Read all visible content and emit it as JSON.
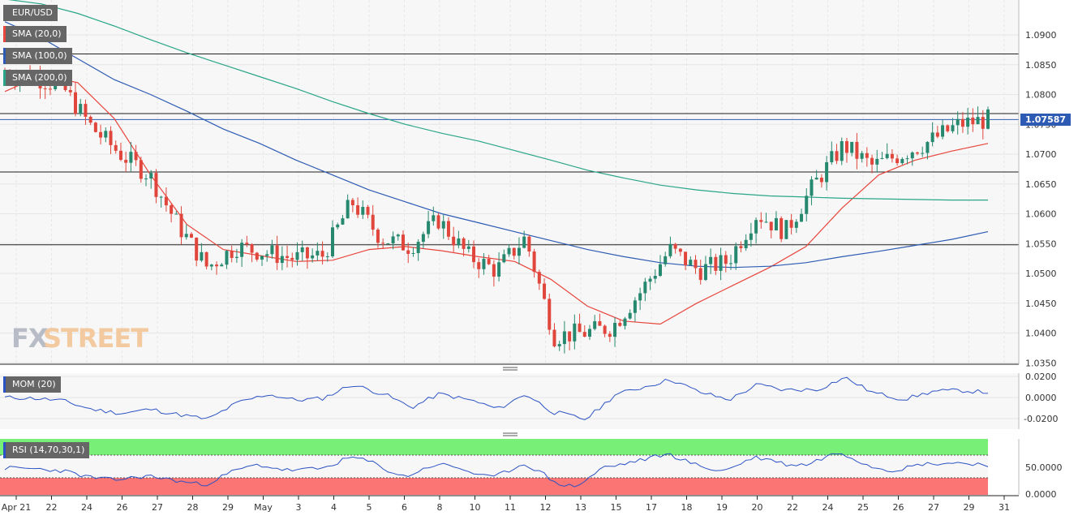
{
  "symbol": "EUR/USD",
  "indicators": [
    "SMA (20,0)",
    "SMA (100,0)",
    "SMA (200,0)"
  ],
  "watermark": {
    "fx": "FX",
    "street": "STREET"
  },
  "momentum": {
    "label": "MOM (20)",
    "ticks": [
      "0.0200",
      "0.0000",
      "-0.0200"
    ]
  },
  "rsi": {
    "label": "RSI (14,70,30,1)",
    "ticks": [
      "50.0000",
      "0.0000"
    ]
  },
  "price_ticks": [
    "1.0900",
    "1.0850",
    "1.0800",
    "1.0750",
    "1.0700",
    "1.0650",
    "1.0600",
    "1.0550",
    "1.0500",
    "1.0450",
    "1.0400",
    "1.0350"
  ],
  "current_price": "1.07587",
  "date_labels": [
    "Apr 21",
    "22",
    "24",
    "26",
    "27",
    "28",
    "29",
    "May",
    "3",
    "4",
    "5",
    "6",
    "8",
    "10",
    "11",
    "12",
    "13",
    "15",
    "17",
    "18",
    "19",
    "20",
    "22",
    "24",
    "25",
    "26",
    "27",
    "29",
    "31"
  ],
  "colors": {
    "up": "#26896f",
    "down": "#e0463c",
    "sma20": "#e8453c",
    "sma100": "#2d5bb3",
    "sma200": "#2aa587",
    "mom": "#2b52c4",
    "rsi": "#2b52c4",
    "rsi_overbought": "#78f078",
    "rsi_oversold": "#fb7575",
    "plot_bg": "#f7f7f7",
    "grid": "#e6e6e6"
  },
  "chart_data": {
    "type": "line",
    "title": "EUR/USD",
    "ylim": [
      1.0345,
      1.096
    ],
    "horizontal_levels": [
      1.0868,
      1.0768,
      1.0758,
      1.067,
      1.0548
    ],
    "x": [
      "Apr 21",
      "22",
      "24",
      "26",
      "27",
      "28",
      "29",
      "May",
      "3",
      "4",
      "5",
      "6",
      "8",
      "10",
      "11",
      "12",
      "13",
      "15",
      "17",
      "18",
      "19",
      "20",
      "22",
      "24",
      "25",
      "26",
      "27",
      "29"
    ],
    "series": [
      {
        "name": "SMA (20,0)",
        "values": [
          1.0805,
          1.0832,
          1.082,
          1.076,
          1.0665,
          1.0582,
          1.054,
          1.053,
          1.052,
          1.0522,
          1.054,
          1.0545,
          1.0538,
          1.0528,
          1.052,
          1.049,
          1.0445,
          1.042,
          1.0415,
          1.045,
          1.048,
          1.051,
          1.0545,
          1.061,
          1.0665,
          1.069,
          1.0705,
          1.0718
        ]
      },
      {
        "name": "SMA (100,0)",
        "values": [
          1.0922,
          1.0895,
          1.086,
          1.0825,
          1.08,
          1.0772,
          1.0742,
          1.0718,
          1.069,
          1.0665,
          1.064,
          1.062,
          1.06,
          1.0585,
          1.057,
          1.0555,
          1.054,
          1.0528,
          1.0518,
          1.0512,
          1.051,
          1.0512,
          1.0518,
          1.0528,
          1.0537,
          1.0547,
          1.0557,
          1.057
        ]
      },
      {
        "name": "SMA (200,0)",
        "values": [
          1.096,
          1.0952,
          1.0936,
          1.0915,
          1.0892,
          1.087,
          1.085,
          1.083,
          1.081,
          1.0788,
          1.0768,
          1.075,
          1.0735,
          1.0722,
          1.0706,
          1.069,
          1.0673,
          1.066,
          1.0648,
          1.064,
          1.0634,
          1.063,
          1.0628,
          1.0626,
          1.0625,
          1.0624,
          1.0623,
          1.0623
        ]
      }
    ],
    "candles_close": [
      1.0835,
      1.083,
      1.0812,
      1.0745,
      1.07,
      1.0665,
      1.058,
      1.051,
      1.0545,
      1.0535,
      1.0525,
      1.053,
      1.062,
      1.056,
      1.0545,
      1.059,
      1.053,
      1.0505,
      1.056,
      1.0395,
      1.04,
      1.041,
      1.047,
      1.054,
      1.0505,
      1.052,
      1.06,
      1.057,
      1.065,
      1.0715,
      1.068,
      1.07,
      1.0722,
      1.075,
      1.0758
    ]
  }
}
